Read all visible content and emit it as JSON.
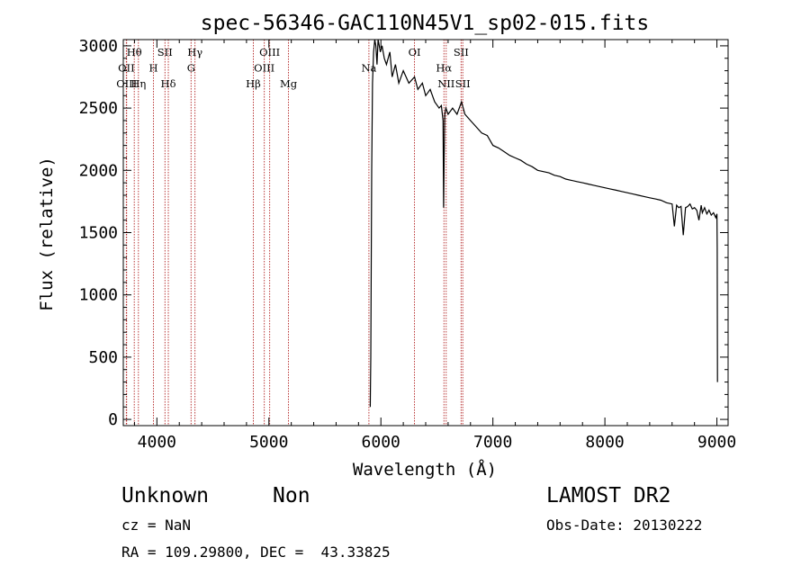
{
  "chart_data": {
    "type": "line",
    "title": "spec-56346-GAC110N45V1_sp02-015.fits",
    "xlabel": "Wavelength (Å)",
    "ylabel": "Flux (relative)",
    "xlim": [
      3700,
      9100
    ],
    "ylim": [
      -50,
      3050
    ],
    "xticks": [
      4000,
      5000,
      6000,
      7000,
      8000,
      9000
    ],
    "yticks": [
      0,
      500,
      1000,
      1500,
      2000,
      2500,
      3000
    ],
    "series": [
      {
        "x": [
          3700,
          5900,
          5905,
          5910,
          5918,
          5925,
          5935,
          5945,
          5955,
          5965,
          5975,
          5985,
          5995,
          6010,
          6030,
          6050,
          6080,
          6100,
          6130,
          6160,
          6200,
          6250,
          6300,
          6330,
          6370,
          6400,
          6440,
          6480,
          6520,
          6540,
          6555,
          6560,
          6565,
          6570,
          6580,
          6600,
          6640,
          6680,
          6720,
          6750,
          6800,
          6850,
          6900,
          6950,
          7000,
          7050,
          7100,
          7150,
          7200,
          7250,
          7300,
          7350,
          7400,
          7450,
          7500,
          7550,
          7600,
          7650,
          7700,
          7750,
          7800,
          7850,
          7900,
          7950,
          8000,
          8050,
          8100,
          8150,
          8200,
          8250,
          8300,
          8350,
          8400,
          8450,
          8500,
          8550,
          8600,
          8620,
          8640,
          8660,
          8680,
          8700,
          8720,
          8740,
          8760,
          8780,
          8800,
          8820,
          8840,
          8860,
          8870,
          8890,
          8910,
          8930,
          8950,
          8970,
          8990,
          9000,
          9003,
          9005
        ],
        "values": [
          null,
          null,
          100,
          500,
          2000,
          2700,
          2950,
          3050,
          3000,
          2850,
          3100,
          3000,
          2950,
          3000,
          2900,
          2850,
          2950,
          2750,
          2850,
          2700,
          2800,
          2700,
          2750,
          2650,
          2700,
          2600,
          2650,
          2550,
          2500,
          2520,
          2400,
          1700,
          2100,
          2450,
          2500,
          2450,
          2500,
          2450,
          2550,
          2450,
          2400,
          2350,
          2300,
          2280,
          2200,
          2180,
          2150,
          2120,
          2100,
          2080,
          2050,
          2030,
          2000,
          1990,
          1980,
          1960,
          1950,
          1930,
          1920,
          1910,
          1900,
          1890,
          1880,
          1870,
          1860,
          1850,
          1840,
          1830,
          1820,
          1810,
          1800,
          1790,
          1780,
          1770,
          1760,
          1740,
          1730,
          1550,
          1720,
          1700,
          1710,
          1480,
          1700,
          1710,
          1730,
          1690,
          1700,
          1680,
          1600,
          1720,
          1660,
          1700,
          1650,
          1680,
          1640,
          1660,
          1620,
          1650,
          1380,
          300
        ]
      }
    ],
    "lines": [
      {
        "label": "Hθ",
        "x": 3798,
        "row": 0
      },
      {
        "label": "OII",
        "x": 3727,
        "row": 1
      },
      {
        "label": "OIII",
        "x": 3730,
        "row": 2
      },
      {
        "label": "Hη",
        "x": 3835,
        "row": 2
      },
      {
        "label": "H",
        "x": 3969,
        "row": 1
      },
      {
        "label": "SII",
        "x": 4072,
        "row": 0
      },
      {
        "label": "Hδ",
        "x": 4102,
        "row": 2
      },
      {
        "label": "Hγ",
        "x": 4340,
        "row": 0
      },
      {
        "label": "G",
        "x": 4305,
        "row": 1
      },
      {
        "label": "Hβ",
        "x": 4861,
        "row": 2
      },
      {
        "label": "OIII",
        "x": 4959,
        "row": 1
      },
      {
        "label": "OIII",
        "x": 5007,
        "row": 0
      },
      {
        "label": "Mg",
        "x": 5175,
        "row": 2
      },
      {
        "label": "Na",
        "x": 5893,
        "row": 1
      },
      {
        "label": "OI",
        "x": 6300,
        "row": 0
      },
      {
        "label": "Hα",
        "x": 6563,
        "row": 1
      },
      {
        "label": "NII",
        "x": 6583,
        "row": 2
      },
      {
        "label": "SII",
        "x": 6716,
        "row": 0
      },
      {
        "label": "SII",
        "x": 6731,
        "row": 2
      }
    ]
  },
  "footer": {
    "class_label": "Unknown",
    "subclass_label": "Non",
    "survey_label": "LAMOST DR2",
    "cz_label": "cz = NaN",
    "obs_date_label": "Obs-Date: 20130222",
    "coords_label": "RA = 109.29800, DEC =  43.33825"
  }
}
